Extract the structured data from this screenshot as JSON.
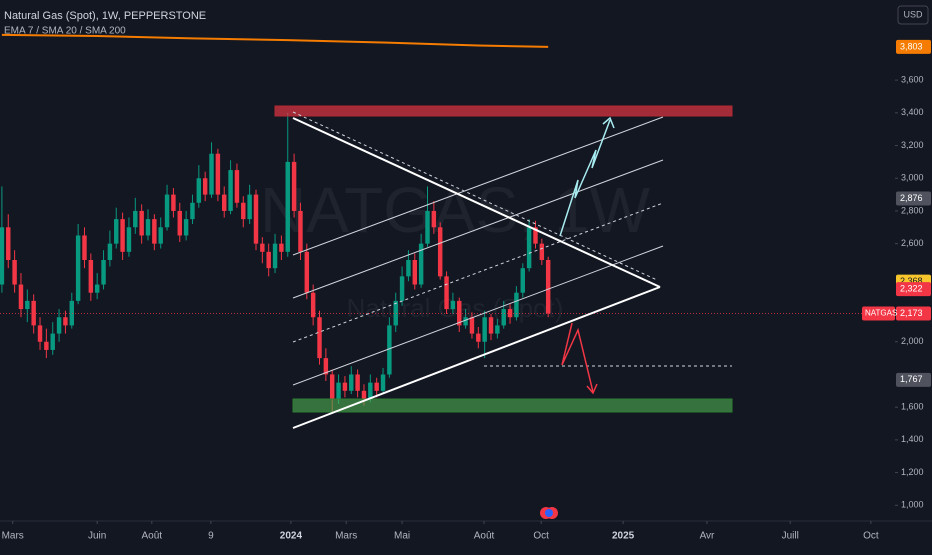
{
  "header": {
    "symbol_title": "Natural Gas (Spot), 1W, PEPPERSTONE",
    "indicators": "EMA 7 / SMA 20 / SMA 200",
    "currency": "USD",
    "watermark": "NATGAS, 1W",
    "watermark_sub": "Natural Gas (Spot)",
    "symbol_tag": "NATGAS"
  },
  "chart_data": {
    "type": "candlestick",
    "up_color": "#089981",
    "down_color": "#f23645",
    "x": [
      0,
      1,
      2,
      3,
      4,
      5,
      6,
      7,
      8,
      9,
      10,
      11,
      12,
      13,
      14,
      15,
      16,
      17,
      18,
      19,
      20,
      21,
      22,
      23,
      24,
      25,
      26,
      27,
      28,
      29,
      30,
      31,
      32,
      33,
      34,
      35,
      36,
      37,
      38,
      39,
      40,
      41,
      42,
      43,
      44,
      45,
      46,
      47,
      48,
      49,
      50,
      51,
      52,
      53,
      54,
      55,
      56,
      57,
      58,
      59,
      60,
      61,
      62,
      63,
      64,
      65,
      66,
      67,
      68,
      69,
      70,
      71,
      72,
      73,
      74,
      75,
      76,
      77,
      78,
      79,
      80,
      81,
      82,
      83,
      84,
      85,
      86
    ],
    "ohlc": [
      [
        2350,
        2950,
        2300,
        2700
      ],
      [
        2700,
        2780,
        2450,
        2500
      ],
      [
        2500,
        2560,
        2300,
        2350
      ],
      [
        2350,
        2420,
        2150,
        2200
      ],
      [
        2200,
        2320,
        2120,
        2250
      ],
      [
        2250,
        2290,
        2050,
        2100
      ],
      [
        2100,
        2150,
        1950,
        2000
      ],
      [
        2000,
        2080,
        1900,
        1950
      ],
      [
        1950,
        2120,
        1920,
        2050
      ],
      [
        2050,
        2200,
        2000,
        2150
      ],
      [
        2150,
        2190,
        2050,
        2100
      ],
      [
        2100,
        2300,
        2080,
        2250
      ],
      [
        2250,
        2720,
        2230,
        2650
      ],
      [
        2650,
        2700,
        2450,
        2500
      ],
      [
        2500,
        2540,
        2250,
        2300
      ],
      [
        2300,
        2420,
        2260,
        2350
      ],
      [
        2350,
        2560,
        2320,
        2500
      ],
      [
        2500,
        2680,
        2460,
        2600
      ],
      [
        2600,
        2820,
        2570,
        2750
      ],
      [
        2750,
        2790,
        2500,
        2550
      ],
      [
        2550,
        2760,
        2520,
        2700
      ],
      [
        2700,
        2880,
        2660,
        2800
      ],
      [
        2800,
        2840,
        2600,
        2650
      ],
      [
        2650,
        2810,
        2620,
        2750
      ],
      [
        2750,
        2780,
        2560,
        2600
      ],
      [
        2600,
        2760,
        2570,
        2700
      ],
      [
        2700,
        2960,
        2680,
        2900
      ],
      [
        2900,
        2940,
        2760,
        2800
      ],
      [
        2800,
        2850,
        2610,
        2650
      ],
      [
        2650,
        2800,
        2620,
        2750
      ],
      [
        2750,
        2900,
        2720,
        2850
      ],
      [
        2850,
        3080,
        2820,
        3000
      ],
      [
        3000,
        3040,
        2860,
        2900
      ],
      [
        2900,
        3220,
        2880,
        3150
      ],
      [
        3150,
        3180,
        2860,
        2900
      ],
      [
        2900,
        2950,
        2760,
        2800
      ],
      [
        2800,
        3110,
        2780,
        3050
      ],
      [
        3050,
        3090,
        2820,
        2850
      ],
      [
        2850,
        2890,
        2700,
        2750
      ],
      [
        2750,
        2960,
        2720,
        2900
      ],
      [
        2900,
        2930,
        2560,
        2600
      ],
      [
        2600,
        2640,
        2480,
        2550
      ],
      [
        2550,
        2600,
        2400,
        2450
      ],
      [
        2450,
        2660,
        2420,
        2600
      ],
      [
        2600,
        2650,
        2500,
        2550
      ],
      [
        2550,
        3400,
        2520,
        3100
      ],
      [
        3100,
        3150,
        2760,
        2800
      ],
      [
        2800,
        2850,
        2500,
        2550
      ],
      [
        2550,
        2600,
        2260,
        2300
      ],
      [
        2300,
        2350,
        2100,
        2150
      ],
      [
        2150,
        2190,
        1860,
        1900
      ],
      [
        1900,
        1960,
        1760,
        1800
      ],
      [
        1800,
        1830,
        1570,
        1650
      ],
      [
        1650,
        1800,
        1620,
        1750
      ],
      [
        1750,
        1790,
        1660,
        1700
      ],
      [
        1700,
        1850,
        1680,
        1800
      ],
      [
        1800,
        1830,
        1660,
        1700
      ],
      [
        1700,
        1740,
        1610,
        1650
      ],
      [
        1650,
        1800,
        1630,
        1750
      ],
      [
        1750,
        1780,
        1660,
        1700
      ],
      [
        1700,
        1840,
        1680,
        1800
      ],
      [
        1800,
        2150,
        1780,
        2100
      ],
      [
        2100,
        2300,
        2060,
        2250
      ],
      [
        2250,
        2460,
        2220,
        2400
      ],
      [
        2400,
        2560,
        2370,
        2500
      ],
      [
        2500,
        2540,
        2320,
        2350
      ],
      [
        2350,
        2660,
        2330,
        2600
      ],
      [
        2600,
        2950,
        2580,
        2800
      ],
      [
        2800,
        2860,
        2660,
        2700
      ],
      [
        2700,
        2730,
        2380,
        2400
      ],
      [
        2400,
        2430,
        2170,
        2200
      ],
      [
        2200,
        2300,
        2170,
        2250
      ],
      [
        2250,
        2270,
        2060,
        2100
      ],
      [
        2100,
        2200,
        2080,
        2150
      ],
      [
        2150,
        2180,
        2020,
        2050
      ],
      [
        2050,
        2090,
        1960,
        2000
      ],
      [
        2000,
        2190,
        1900,
        2150
      ],
      [
        2150,
        2170,
        2010,
        2050
      ],
      [
        2050,
        2140,
        2020,
        2100
      ],
      [
        2100,
        2250,
        2080,
        2200
      ],
      [
        2200,
        2230,
        2110,
        2150
      ],
      [
        2150,
        2340,
        2130,
        2300
      ],
      [
        2300,
        2480,
        2270,
        2450
      ],
      [
        2450,
        2750,
        2430,
        2700
      ],
      [
        2700,
        2740,
        2570,
        2600
      ],
      [
        2600,
        2630,
        2470,
        2500
      ],
      [
        2500,
        2520,
        2150,
        2173
      ]
    ],
    "sma200": {
      "name": "SMA 200",
      "color": "#f57c00",
      "x": [
        0,
        15,
        30,
        45,
        60,
        75,
        86
      ],
      "values": [
        3877,
        3870,
        3855,
        3845,
        3830,
        3812,
        3803
      ]
    },
    "price_labels": [
      {
        "value": 3803,
        "label": "3,803",
        "color": "#f57c00"
      },
      {
        "value": 2876,
        "label": "2,876",
        "color": "#50535e"
      },
      {
        "value": 2368,
        "label": "2,368",
        "color": "#f7c52c"
      },
      {
        "value": 2322,
        "label": "2,322",
        "color": "#f23645"
      },
      {
        "value": 2173,
        "label": "2,173",
        "color": "#f23645"
      },
      {
        "value": 1767,
        "label": "1,767",
        "color": "#50535e"
      }
    ],
    "xlim": [
      -0.3,
      140.6
    ],
    "xticks": [
      {
        "value": 1.7,
        "label": "Mars"
      },
      {
        "value": 15,
        "label": "Juin"
      },
      {
        "value": 23.6,
        "label": "Août"
      },
      {
        "value": 32.9,
        "label": "9"
      },
      {
        "value": 45.5,
        "label": "2024",
        "bold": true
      },
      {
        "value": 54.2,
        "label": "Mars"
      },
      {
        "value": 63,
        "label": "Mai"
      },
      {
        "value": 75.9,
        "label": "Août"
      },
      {
        "value": 84.9,
        "label": "Oct"
      },
      {
        "value": 97.8,
        "label": "2025",
        "bold": true
      },
      {
        "value": 111,
        "label": "Avr"
      },
      {
        "value": 124.1,
        "label": "Juill"
      },
      {
        "value": 136.8,
        "label": "Oct"
      }
    ],
    "ylim": [
      910,
      4090
    ],
    "yticks": [
      {
        "value": 1000,
        "label": "1,000"
      },
      {
        "value": 1200,
        "label": "1,200"
      },
      {
        "value": 1400,
        "label": "1,400"
      },
      {
        "value": 1600,
        "label": "1,600"
      },
      {
        "value": 2000,
        "label": "2,000"
      },
      {
        "value": 2600,
        "label": "2,600"
      },
      {
        "value": 2800,
        "label": "2,800"
      },
      {
        "value": 3000,
        "label": "3,000"
      },
      {
        "value": 3200,
        "label": "3,200"
      },
      {
        "value": 3400,
        "label": "3,400"
      },
      {
        "value": 3600,
        "label": "3,600"
      }
    ]
  }
}
